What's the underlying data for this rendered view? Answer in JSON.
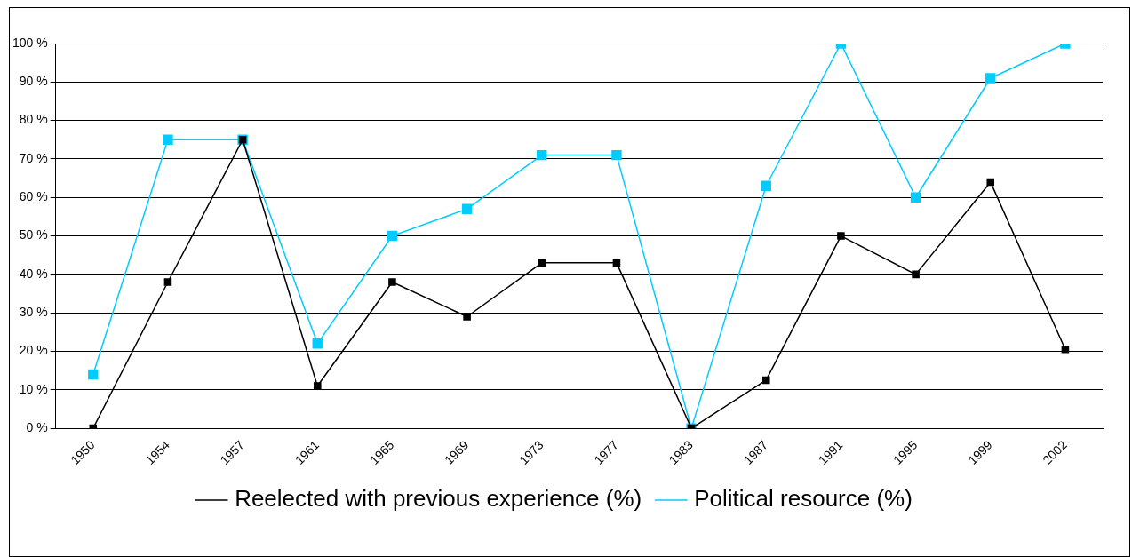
{
  "chart_data": {
    "type": "line",
    "categories": [
      "1950",
      "1954",
      "1957",
      "1961",
      "1965",
      "1969",
      "1973",
      "1977",
      "1983",
      "1987",
      "1991",
      "1995",
      "1999",
      "2002"
    ],
    "series": [
      {
        "name": "Reelected with previous experience (%)",
        "color": "#000000",
        "values": [
          0,
          38,
          75,
          11,
          38,
          29,
          43,
          43,
          0,
          12.5,
          50,
          40,
          64,
          20.5
        ]
      },
      {
        "name": "Political resource (%)",
        "color": "#00ccff",
        "values": [
          14,
          75,
          75,
          22,
          50,
          57,
          71,
          71,
          0,
          63,
          100,
          60,
          91,
          100
        ]
      }
    ],
    "ylim": [
      0,
      100
    ],
    "yticks": [
      {
        "value": 0,
        "label": "0 %"
      },
      {
        "value": 10,
        "label": "10 %"
      },
      {
        "value": 20,
        "label": "20 %"
      },
      {
        "value": 30,
        "label": "30 %"
      },
      {
        "value": 40,
        "label": "40 %"
      },
      {
        "value": 50,
        "label": "50 %"
      },
      {
        "value": 60,
        "label": "60 %"
      },
      {
        "value": 70,
        "label": "70 %"
      },
      {
        "value": 80,
        "label": "80 %"
      },
      {
        "value": 90,
        "label": "90 %"
      },
      {
        "value": 100,
        "label": "100 %"
      }
    ],
    "grid": "y",
    "legend": "bottom",
    "marker": "square",
    "line_style": "solid"
  }
}
